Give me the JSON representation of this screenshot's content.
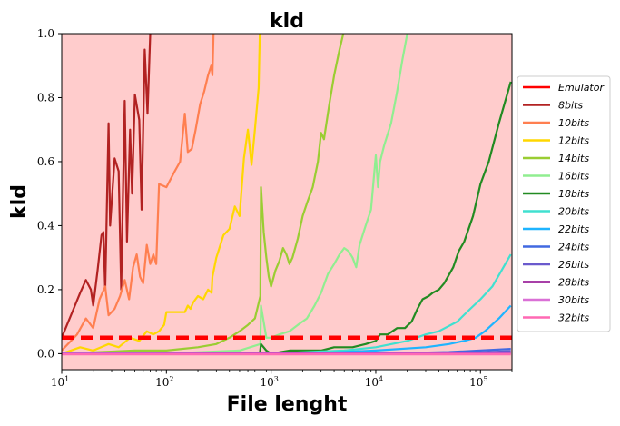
{
  "chart_data": {
    "type": "line",
    "title": "kld",
    "xlabel": "File lenght",
    "ylabel": "kld",
    "xscale": "log",
    "xlim": [
      10,
      200000
    ],
    "ylim": [
      -0.05,
      1.0
    ],
    "y_ticks": [
      "0.0",
      "0.2",
      "0.4",
      "0.6",
      "0.8",
      "1.0"
    ],
    "x_ticks": [
      {
        "value": 10,
        "base": "10",
        "exp": "1"
      },
      {
        "value": 100,
        "base": "10",
        "exp": "2"
      },
      {
        "value": 1000,
        "base": "10",
        "exp": "3"
      },
      {
        "value": 10000,
        "base": "10",
        "exp": "4"
      },
      {
        "value": 100000,
        "base": "10",
        "exp": "5"
      }
    ],
    "background_color": "#ffcccc",
    "legend_position": "right",
    "emulator": {
      "name": "Emulator",
      "y": 0.05,
      "color": "#ff0000"
    },
    "series": [
      {
        "name": "8bits",
        "color": "#b22222",
        "points": [
          [
            10,
            0.05
          ],
          [
            13,
            0.14
          ],
          [
            15,
            0.19
          ],
          [
            17,
            0.23
          ],
          [
            19,
            0.2
          ],
          [
            20,
            0.15
          ],
          [
            22,
            0.26
          ],
          [
            24,
            0.37
          ],
          [
            25,
            0.38
          ],
          [
            26,
            0.2
          ],
          [
            28,
            0.72
          ],
          [
            29,
            0.4
          ],
          [
            32,
            0.61
          ],
          [
            35,
            0.57
          ],
          [
            37,
            0.2
          ],
          [
            40,
            0.79
          ],
          [
            42,
            0.35
          ],
          [
            45,
            0.7
          ],
          [
            47,
            0.5
          ],
          [
            50,
            0.81
          ],
          [
            55,
            0.73
          ],
          [
            58,
            0.45
          ],
          [
            62,
            0.95
          ],
          [
            66,
            0.75
          ],
          [
            70,
            1.0
          ],
          [
            75,
            1.1
          ]
        ]
      },
      {
        "name": "10bits",
        "color": "#ff7f50",
        "points": [
          [
            10,
            0.01
          ],
          [
            14,
            0.06
          ],
          [
            17,
            0.11
          ],
          [
            20,
            0.08
          ],
          [
            23,
            0.17
          ],
          [
            26,
            0.21
          ],
          [
            28,
            0.12
          ],
          [
            32,
            0.14
          ],
          [
            36,
            0.18
          ],
          [
            40,
            0.23
          ],
          [
            44,
            0.17
          ],
          [
            48,
            0.27
          ],
          [
            52,
            0.31
          ],
          [
            56,
            0.24
          ],
          [
            60,
            0.22
          ],
          [
            65,
            0.34
          ],
          [
            70,
            0.28
          ],
          [
            75,
            0.31
          ],
          [
            80,
            0.28
          ],
          [
            85,
            0.53
          ],
          [
            100,
            0.52
          ],
          [
            120,
            0.57
          ],
          [
            135,
            0.6
          ],
          [
            150,
            0.75
          ],
          [
            160,
            0.63
          ],
          [
            175,
            0.64
          ],
          [
            190,
            0.7
          ],
          [
            210,
            0.78
          ],
          [
            230,
            0.82
          ],
          [
            250,
            0.87
          ],
          [
            268,
            0.9
          ],
          [
            275,
            0.87
          ],
          [
            282,
            1.0
          ],
          [
            300,
            1.1
          ]
        ]
      },
      {
        "name": "12bits",
        "color": "#ffd700",
        "points": [
          [
            10,
            0.0
          ],
          [
            15,
            0.02
          ],
          [
            20,
            0.01
          ],
          [
            28,
            0.03
          ],
          [
            35,
            0.02
          ],
          [
            45,
            0.05
          ],
          [
            55,
            0.04
          ],
          [
            65,
            0.07
          ],
          [
            75,
            0.06
          ],
          [
            85,
            0.07
          ],
          [
            95,
            0.09
          ],
          [
            100,
            0.13
          ],
          [
            130,
            0.13
          ],
          [
            150,
            0.13
          ],
          [
            160,
            0.15
          ],
          [
            170,
            0.14
          ],
          [
            180,
            0.16
          ],
          [
            200,
            0.18
          ],
          [
            225,
            0.17
          ],
          [
            250,
            0.2
          ],
          [
            270,
            0.19
          ],
          [
            275,
            0.24
          ],
          [
            300,
            0.3
          ],
          [
            350,
            0.37
          ],
          [
            400,
            0.39
          ],
          [
            450,
            0.46
          ],
          [
            500,
            0.43
          ],
          [
            550,
            0.61
          ],
          [
            600,
            0.7
          ],
          [
            650,
            0.59
          ],
          [
            700,
            0.7
          ],
          [
            760,
            0.83
          ],
          [
            780,
            1.0
          ],
          [
            800,
            1.1
          ]
        ]
      },
      {
        "name": "14bits",
        "color": "#9acd32",
        "points": [
          [
            10,
            0.0
          ],
          [
            50,
            0.01
          ],
          [
            100,
            0.01
          ],
          [
            200,
            0.02
          ],
          [
            300,
            0.03
          ],
          [
            400,
            0.05
          ],
          [
            500,
            0.07
          ],
          [
            600,
            0.09
          ],
          [
            700,
            0.11
          ],
          [
            790,
            0.18
          ],
          [
            800,
            0.52
          ],
          [
            850,
            0.38
          ],
          [
            900,
            0.3
          ],
          [
            950,
            0.24
          ],
          [
            1000,
            0.21
          ],
          [
            1100,
            0.26
          ],
          [
            1200,
            0.29
          ],
          [
            1300,
            0.33
          ],
          [
            1400,
            0.31
          ],
          [
            1500,
            0.28
          ],
          [
            1600,
            0.3
          ],
          [
            1800,
            0.36
          ],
          [
            2000,
            0.43
          ],
          [
            2200,
            0.47
          ],
          [
            2500,
            0.52
          ],
          [
            2800,
            0.6
          ],
          [
            3000,
            0.69
          ],
          [
            3200,
            0.67
          ],
          [
            3600,
            0.78
          ],
          [
            4000,
            0.87
          ],
          [
            4500,
            0.95
          ],
          [
            4900,
            1.0
          ],
          [
            5100,
            1.1
          ]
        ]
      },
      {
        "name": "16bits",
        "color": "#90ee90",
        "points": [
          [
            10,
            0.0
          ],
          [
            100,
            0.0
          ],
          [
            500,
            0.01
          ],
          [
            790,
            0.03
          ],
          [
            800,
            0.15
          ],
          [
            900,
            0.05
          ],
          [
            1000,
            0.05
          ],
          [
            1200,
            0.06
          ],
          [
            1500,
            0.07
          ],
          [
            1800,
            0.09
          ],
          [
            2200,
            0.11
          ],
          [
            2600,
            0.15
          ],
          [
            3000,
            0.19
          ],
          [
            3500,
            0.25
          ],
          [
            4000,
            0.28
          ],
          [
            4500,
            0.31
          ],
          [
            5000,
            0.33
          ],
          [
            5500,
            0.32
          ],
          [
            6000,
            0.3
          ],
          [
            6500,
            0.27
          ],
          [
            7000,
            0.34
          ],
          [
            8000,
            0.4
          ],
          [
            9000,
            0.45
          ],
          [
            10000,
            0.62
          ],
          [
            10500,
            0.52
          ],
          [
            11000,
            0.6
          ],
          [
            12000,
            0.65
          ],
          [
            14000,
            0.72
          ],
          [
            16000,
            0.82
          ],
          [
            18000,
            0.92
          ],
          [
            20000,
            1.0
          ],
          [
            21000,
            1.1
          ]
        ]
      },
      {
        "name": "18bits",
        "color": "#228b22",
        "points": [
          [
            10,
            0.0
          ],
          [
            200,
            0.0
          ],
          [
            780,
            0.0
          ],
          [
            800,
            0.03
          ],
          [
            900,
            0.01
          ],
          [
            1000,
            0.0
          ],
          [
            1500,
            0.01
          ],
          [
            2000,
            0.01
          ],
          [
            3000,
            0.01
          ],
          [
            4000,
            0.02
          ],
          [
            6000,
            0.02
          ],
          [
            8000,
            0.03
          ],
          [
            10000,
            0.04
          ],
          [
            11000,
            0.06
          ],
          [
            13000,
            0.06
          ],
          [
            16000,
            0.08
          ],
          [
            19000,
            0.08
          ],
          [
            22000,
            0.1
          ],
          [
            25000,
            0.14
          ],
          [
            28000,
            0.17
          ],
          [
            32000,
            0.18
          ],
          [
            35000,
            0.19
          ],
          [
            40000,
            0.2
          ],
          [
            45000,
            0.22
          ],
          [
            55000,
            0.27
          ],
          [
            62000,
            0.32
          ],
          [
            70000,
            0.35
          ],
          [
            85000,
            0.43
          ],
          [
            100000,
            0.53
          ],
          [
            120000,
            0.6
          ],
          [
            150000,
            0.72
          ],
          [
            195000,
            0.85
          ]
        ]
      },
      {
        "name": "20bits",
        "color": "#40e0d0",
        "points": [
          [
            10,
            0.0
          ],
          [
            1000,
            0.0
          ],
          [
            5000,
            0.01
          ],
          [
            10000,
            0.02
          ],
          [
            20000,
            0.04
          ],
          [
            30000,
            0.06
          ],
          [
            40000,
            0.07
          ],
          [
            60000,
            0.1
          ],
          [
            80000,
            0.14
          ],
          [
            100000,
            0.17
          ],
          [
            130000,
            0.21
          ],
          [
            195000,
            0.31
          ]
        ]
      },
      {
        "name": "22bits",
        "color": "#1eb4ff",
        "points": [
          [
            10,
            0.0
          ],
          [
            2000,
            0.0
          ],
          [
            10000,
            0.01
          ],
          [
            30000,
            0.02
          ],
          [
            50000,
            0.03
          ],
          [
            70000,
            0.04
          ],
          [
            90000,
            0.05
          ],
          [
            110000,
            0.07
          ],
          [
            150000,
            0.11
          ],
          [
            195000,
            0.15
          ]
        ]
      },
      {
        "name": "24bits",
        "color": "#4169e1",
        "points": [
          [
            10,
            0.0
          ],
          [
            10000,
            0.0
          ],
          [
            50000,
            0.005
          ],
          [
            100000,
            0.01
          ],
          [
            195000,
            0.015
          ]
        ]
      },
      {
        "name": "26bits",
        "color": "#6a5acd",
        "points": [
          [
            10,
            0.0
          ],
          [
            20000,
            0.0
          ],
          [
            100000,
            0.004
          ],
          [
            195000,
            0.008
          ]
        ]
      },
      {
        "name": "28bits",
        "color": "#8b008b",
        "points": [
          [
            10,
            0.0
          ],
          [
            195000,
            0.002
          ]
        ]
      },
      {
        "name": "30bits",
        "color": "#da70d6",
        "points": [
          [
            10,
            0.0
          ],
          [
            195000,
            0.0
          ]
        ]
      },
      {
        "name": "32bits",
        "color": "#ff69b4",
        "points": [
          [
            10,
            -0.002
          ],
          [
            195000,
            -0.002
          ]
        ]
      }
    ]
  }
}
